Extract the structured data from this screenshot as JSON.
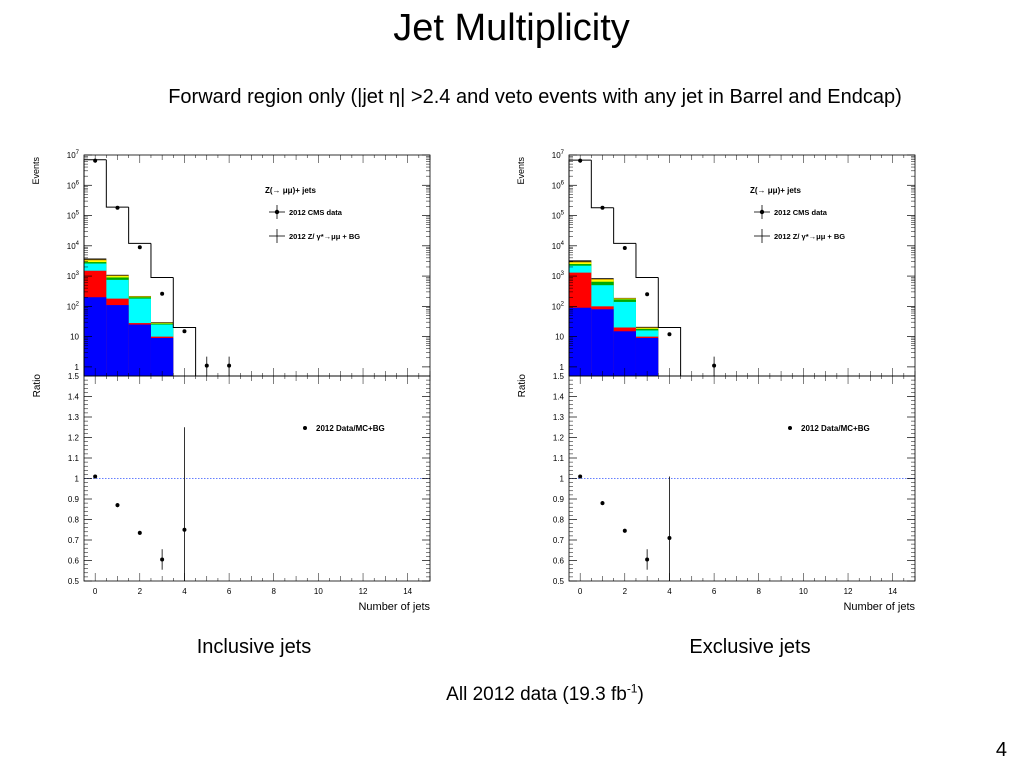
{
  "slide": {
    "title": "Jet Multiplicity",
    "subtitle": "Forward region only (|jet η| >2.4 and veto events with any jet in Barrel and Endcap)",
    "footer_main": "All 2012 data (19.3 fb",
    "footer_sup": "-1",
    "footer_close": ")",
    "page_number": "4"
  },
  "chart_data": [
    {
      "type": "bar",
      "caption": "Inclusive jets",
      "top_panel": {
        "ylabel": "Events",
        "yscale": "log",
        "ylim": [
          0.5,
          10000000
        ],
        "yticks": [
          {
            "value": 1,
            "label": "1"
          },
          {
            "value": 10,
            "label": "10"
          },
          {
            "value": 100,
            "label": "10^2"
          },
          {
            "value": 1000,
            "label": "10^3"
          },
          {
            "value": 10000,
            "label": "10^4"
          },
          {
            "value": 100000,
            "label": "10^5"
          },
          {
            "value": 1000000,
            "label": "10^6"
          },
          {
            "value": 10000000,
            "label": "10^7"
          }
        ],
        "legend_title": "Z(→ μμ)+ jets",
        "legend_data": "2012 CMS data",
        "legend_mc": "2012 Z/ γ*→μμ + BG",
        "x": [
          0,
          1,
          2,
          3,
          4,
          5,
          6
        ],
        "data": [
          6500000,
          180000,
          9000,
          260,
          15,
          1.1,
          1.1
        ],
        "mc_total": [
          7000000,
          190000,
          12000,
          900,
          20,
          0,
          0
        ],
        "stack": [
          {
            "color": "#0000ff",
            "values": [
              200,
              110,
              25,
              9,
              0,
              0,
              0
            ]
          },
          {
            "color": "#ff0000",
            "values": [
              1500,
              180,
              28,
              10,
              0,
              0,
              0
            ]
          },
          {
            "color": "#00ffff",
            "values": [
              2600,
              750,
              180,
              25,
              0,
              0,
              0
            ]
          },
          {
            "color": "#00aa00",
            "values": [
              2900,
              900,
              200,
              27,
              0,
              0,
              0
            ]
          },
          {
            "color": "#ffff00",
            "values": [
              3300,
              1000,
              210,
              28,
              0,
              0,
              0
            ]
          },
          {
            "color": "#cc9900",
            "values": [
              3500,
              1050,
              215,
              29,
              0,
              0,
              0
            ]
          },
          {
            "color": "#000000",
            "values": [
              3800,
              1100,
              220,
              30,
              0,
              0,
              0
            ]
          }
        ]
      },
      "ratio_panel": {
        "ylabel": "Ratio",
        "xlabel": "Number of jets",
        "ylim": [
          0.5,
          1.5
        ],
        "yticks": [
          "0.5",
          "0.6",
          "0.7",
          "0.8",
          "0.9",
          "1",
          "1.1",
          "1.2",
          "1.3",
          "1.4",
          "1.5"
        ],
        "xlim": [
          -0.5,
          15
        ],
        "xticks": [
          "0",
          "2",
          "4",
          "6",
          "8",
          "10",
          "12",
          "14"
        ],
        "legend": "2012 Data/MC+BG",
        "x": [
          0,
          1,
          2,
          3,
          4
        ],
        "values": [
          1.01,
          0.87,
          0.735,
          0.605,
          0.75
        ],
        "errors": [
          0.005,
          0.01,
          0.01,
          0.05,
          0.5
        ]
      }
    },
    {
      "type": "bar",
      "caption": "Exclusive jets",
      "top_panel": {
        "ylabel": "Events",
        "yscale": "log",
        "ylim": [
          0.5,
          10000000
        ],
        "yticks": [
          {
            "value": 1,
            "label": "1"
          },
          {
            "value": 10,
            "label": "10"
          },
          {
            "value": 100,
            "label": "10^2"
          },
          {
            "value": 1000,
            "label": "10^3"
          },
          {
            "value": 10000,
            "label": "10^4"
          },
          {
            "value": 100000,
            "label": "10^5"
          },
          {
            "value": 1000000,
            "label": "10^6"
          },
          {
            "value": 10000000,
            "label": "10^7"
          }
        ],
        "legend_title": "Z(→ μμ)+ jets",
        "legend_data": "2012 CMS data",
        "legend_mc": "2012 Z/ γ*→μμ + BG",
        "x": [
          0,
          1,
          2,
          3,
          4,
          5,
          6
        ],
        "data": [
          6500000,
          180000,
          8500,
          250,
          12,
          0,
          1.1
        ],
        "mc_total": [
          6800000,
          180000,
          12000,
          900,
          20,
          0,
          0
        ],
        "stack": [
          {
            "color": "#0000ff",
            "values": [
              90,
              80,
              15,
              9,
              0,
              0,
              0
            ]
          },
          {
            "color": "#ff0000",
            "values": [
              1300,
              100,
              20,
              10,
              0,
              0,
              0
            ]
          },
          {
            "color": "#00ffff",
            "values": [
              2200,
              500,
              140,
              16,
              0,
              0,
              0
            ]
          },
          {
            "color": "#00aa00",
            "values": [
              2500,
              650,
              170,
              18,
              0,
              0,
              0
            ]
          },
          {
            "color": "#ffff00",
            "values": [
              2800,
              750,
              180,
              19,
              0,
              0,
              0
            ]
          },
          {
            "color": "#cc9900",
            "values": [
              3000,
              800,
              185,
              20,
              0,
              0,
              0
            ]
          },
          {
            "color": "#000000",
            "values": [
              3300,
              850,
              190,
              21,
              0,
              0,
              0
            ]
          }
        ]
      },
      "ratio_panel": {
        "ylabel": "Ratio",
        "xlabel": "Number of jets",
        "ylim": [
          0.5,
          1.5
        ],
        "yticks": [
          "0.5",
          "0.6",
          "0.7",
          "0.8",
          "0.9",
          "1",
          "1.1",
          "1.2",
          "1.3",
          "1.4",
          "1.5"
        ],
        "xlim": [
          -0.5,
          15
        ],
        "xticks": [
          "0",
          "2",
          "4",
          "6",
          "8",
          "10",
          "12",
          "14"
        ],
        "legend": "2012 Data/MC+BG",
        "x": [
          0,
          1,
          2,
          3,
          4
        ],
        "values": [
          1.01,
          0.88,
          0.745,
          0.605,
          0.71
        ],
        "errors": [
          0.005,
          0.01,
          0.01,
          0.05,
          0.3
        ]
      }
    }
  ]
}
